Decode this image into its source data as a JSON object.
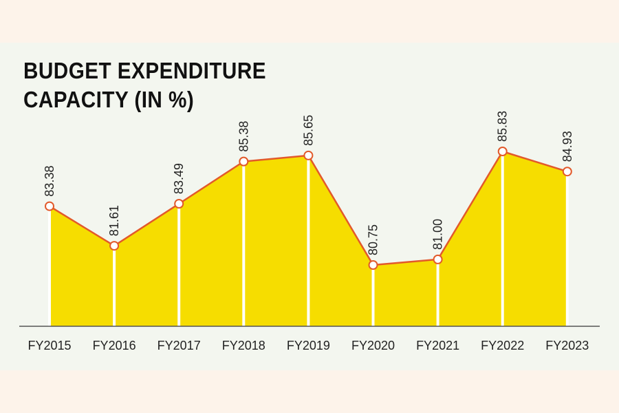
{
  "chart_data": {
    "type": "area",
    "title_lines": [
      "BUDGET EXPENDITURE",
      "CAPACITY (IN %)"
    ],
    "categories": [
      "FY2015",
      "FY2016",
      "FY2017",
      "FY2018",
      "FY2019",
      "FY2020",
      "FY2021",
      "FY2022",
      "FY2023"
    ],
    "series": [
      {
        "name": "Budget expenditure capacity",
        "values": [
          83.38,
          81.61,
          83.49,
          85.38,
          85.65,
          80.75,
          81.0,
          85.83,
          84.93
        ],
        "labels": [
          "83.38",
          "81.61",
          "83.49",
          "85.38",
          "85.65",
          "80.75",
          "81.00",
          "85.83",
          "84.93"
        ]
      }
    ],
    "xlabel": "",
    "ylabel": "",
    "ylim": [
      76.5,
      86.4
    ],
    "grid": false,
    "legend": "none",
    "colors": {
      "fill": "#f6dd00",
      "line": "#e2592a",
      "marker_fill": "#ffffff",
      "marker_stroke": "#e2592a",
      "guide": "#ffffff",
      "axis": "#555555"
    }
  }
}
